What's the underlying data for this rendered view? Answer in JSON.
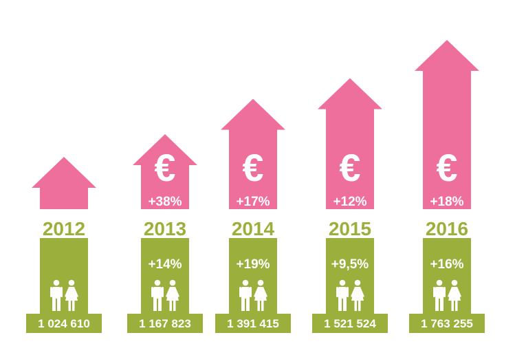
{
  "chart_data": {
    "type": "bar",
    "title": "",
    "categories": [
      "2012",
      "2013",
      "2014",
      "2015",
      "2016"
    ],
    "series": [
      {
        "values": [
          1024610,
          1167823,
          1391415,
          1521524,
          1763255
        ],
        "labels": [
          "1 024 610",
          "1 167 823",
          "1 391 415",
          "1 521 524",
          "1 763 255"
        ],
        "changes": [
          "",
          "+14%",
          "+19%",
          "+9,5%",
          "+16%"
        ]
      },
      {
        "changes": [
          "",
          "+38%",
          "+17%",
          "+12%",
          "+18%"
        ]
      }
    ],
    "icons": [
      "euro-icon",
      "man-icon",
      "woman-icon"
    ],
    "colors": {
      "pink": "#ee6f9b",
      "green": "#9bb03c",
      "white": "#ffffff"
    }
  }
}
